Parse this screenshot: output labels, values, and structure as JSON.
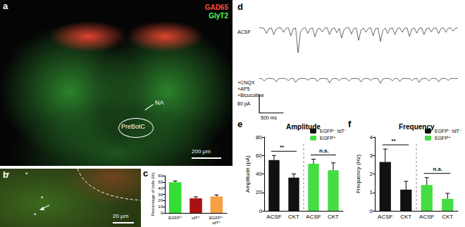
{
  "images": [
    {
      "panel": "a",
      "channels": [
        {
          "name": "GAD65",
          "color": "#ff4a3a"
        },
        {
          "name": "GlyT2",
          "color": "#4cff4c"
        }
      ],
      "annotations": [
        "NA",
        "PreBotC"
      ],
      "scale_bar": "200 μm"
    },
    {
      "panel": "b",
      "annotations": [
        "*",
        "*",
        "*",
        "*"
      ],
      "scale_bar": "20 μm"
    }
  ],
  "chart_data": [
    {
      "panel": "c",
      "type": "bar",
      "ylabel": "Percentage of cells (%)",
      "categories": [
        "EGFP⁺",
        "tdT⁺",
        "EGFP⁺ tdT⁺"
      ],
      "values": [
        49.5,
        23.5,
        26.5
      ],
      "errors": [
        2,
        2.5,
        2.5
      ],
      "colors": [
        "#33dd33",
        "#aa1111",
        "#f5a043"
      ],
      "ylim": [
        0,
        60
      ],
      "yticks": [
        0,
        10,
        20,
        30,
        40,
        50,
        60
      ]
    },
    {
      "panel": "d",
      "type": "line",
      "tick_labels": false,
      "x": [
        0,
        50,
        100,
        150,
        200,
        250,
        300,
        350,
        400,
        450,
        500,
        550,
        600,
        650,
        700,
        750,
        800,
        850,
        900,
        950,
        1000,
        1050,
        1100,
        1150,
        1200,
        1250,
        1300,
        1350,
        1400,
        1450,
        1500,
        1550,
        1600,
        1650,
        1700,
        1750,
        1800,
        1850,
        1900,
        1950,
        2000,
        2050,
        2100,
        2150,
        2200,
        2250,
        2300,
        2350,
        2400,
        2450,
        2500,
        2550,
        2600,
        2650,
        2700,
        2750,
        2800,
        2850,
        2900,
        2950,
        3000,
        3050,
        3100,
        3150,
        3200,
        3250,
        3300,
        3350,
        3400,
        3450,
        3500,
        3550,
        3600,
        3650,
        3700,
        3750,
        3800,
        3850,
        3900,
        3950,
        4000,
        4050,
        4100
      ],
      "series": [
        {
          "name": "ACSF",
          "color": "#000000",
          "values": [
            0,
            -1,
            -3,
            -25,
            -4,
            -1,
            -30,
            -6,
            0,
            -1,
            -20,
            -3,
            0,
            -35,
            -5,
            -1,
            -110,
            -20,
            -3,
            0,
            -25,
            -3,
            -1,
            -40,
            -6,
            -2,
            -18,
            -2,
            0,
            -30,
            -4,
            -1,
            -22,
            -2,
            -45,
            -8,
            -1,
            0,
            -28,
            -3,
            -1,
            -55,
            -10,
            -2,
            -20,
            -3,
            0,
            -35,
            -4,
            -1,
            -60,
            -12,
            -2,
            -25,
            -3,
            -1,
            -30,
            -4,
            0,
            -20,
            -2,
            -1,
            -38,
            -5,
            -1,
            -24,
            -3,
            0,
            -30,
            -4,
            -1,
            -18,
            -2,
            -1,
            -26,
            -3,
            0,
            -20,
            -2,
            -1,
            -15,
            -2,
            0
          ]
        },
        {
          "name": "+CNQX\n+AP5\n+Bicuculline",
          "color": "#000000",
          "values": [
            0,
            -1,
            -12,
            -2,
            0,
            -1,
            -2,
            -15,
            -2,
            0,
            -1,
            -1,
            -10,
            -1,
            0,
            -18,
            -3,
            -1,
            0,
            -1,
            -8,
            -1,
            0,
            -1,
            -14,
            -2,
            0,
            -1,
            -1,
            -20,
            -3,
            0,
            -1,
            -10,
            -1,
            0,
            -1,
            -12,
            -2,
            0,
            -1,
            -1,
            -16,
            -2,
            0,
            -1,
            -9,
            -1,
            0,
            -1,
            -22,
            -3,
            0,
            -1,
            -1,
            -11,
            -1,
            0,
            -14,
            -2,
            0,
            -1,
            -1,
            -10,
            -1,
            0,
            -18,
            -2,
            -1,
            0,
            -12,
            -1,
            0,
            -1,
            -15,
            -2,
            0,
            -1,
            -9,
            -1,
            0,
            -1,
            0
          ]
        }
      ],
      "xlim": [
        0,
        4100
      ],
      "ylim": [
        -150,
        20
      ],
      "scale_bar": {
        "x": 500,
        "x_label": "500 ms",
        "y": 80,
        "y_label": "80 pA"
      }
    },
    {
      "panel": "e",
      "type": "bar",
      "title": "Amplitude",
      "ylabel": "Amplitude (pA)",
      "categories": [
        "ACSF",
        "CKT",
        "ACSF",
        "CKT"
      ],
      "series": [
        {
          "name": "EGFP⁻ tdT⁻",
          "color": "#111111",
          "values": [
            55,
            36,
            null,
            null
          ],
          "errors": [
            5,
            4,
            null,
            null
          ]
        },
        {
          "name": "EGFP⁺",
          "color": "#44dd44",
          "values": [
            null,
            null,
            51,
            44
          ],
          "errors": [
            null,
            null,
            5,
            8
          ]
        }
      ],
      "ylim": [
        0,
        80
      ],
      "yticks": [
        0,
        20,
        40,
        60,
        80
      ],
      "legend": "top-right",
      "annotations": [
        {
          "text": "**",
          "between": [
            0,
            1
          ]
        },
        {
          "text": "n.s.",
          "between": [
            2,
            3
          ]
        }
      ]
    },
    {
      "panel": "f",
      "type": "bar",
      "title": "Frequency",
      "ylabel": "Frequency (Hz)",
      "categories": [
        "ACSF",
        "CKT",
        "ACSF",
        "CKT"
      ],
      "series": [
        {
          "name": "EGFP⁻ tdT⁻",
          "color": "#111111",
          "values": [
            2.65,
            1.15,
            null,
            null
          ],
          "errors": [
            0.7,
            0.45,
            null,
            null
          ]
        },
        {
          "name": "EGFP⁺",
          "color": "#44dd44",
          "values": [
            null,
            null,
            1.4,
            0.65
          ],
          "errors": [
            null,
            null,
            0.4,
            0.3
          ]
        }
      ],
      "ylim": [
        0,
        4
      ],
      "yticks": [
        0,
        1,
        2,
        3,
        4
      ],
      "legend": "top-right",
      "annotations": [
        {
          "text": "**",
          "between": [
            0,
            1
          ]
        },
        {
          "text": "n.s.",
          "between": [
            2,
            3
          ]
        }
      ]
    }
  ]
}
